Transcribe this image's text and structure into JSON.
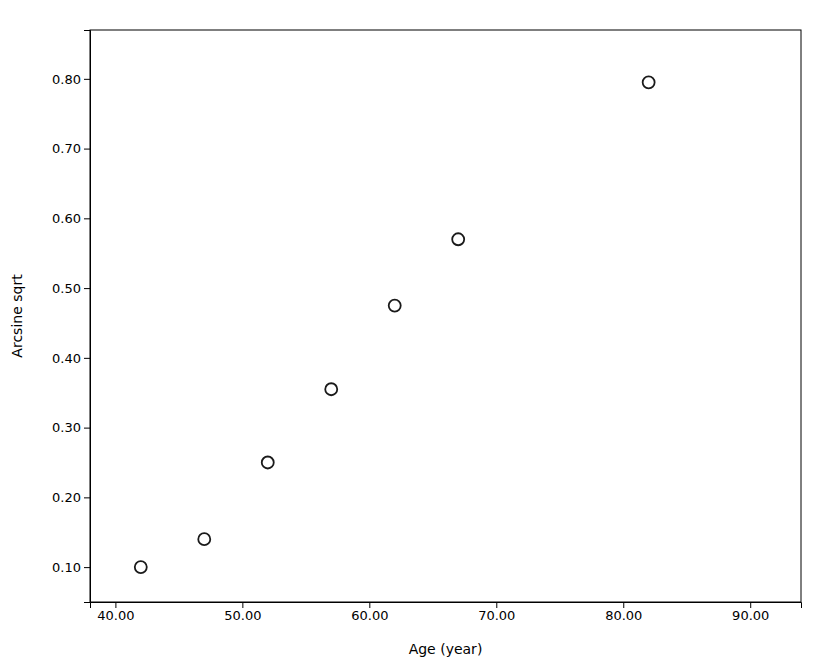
{
  "chart_data": {
    "type": "scatter",
    "x": [
      42,
      47,
      52,
      57,
      62,
      67,
      82
    ],
    "y": [
      0.1,
      0.14,
      0.25,
      0.355,
      0.475,
      0.57,
      0.795
    ],
    "xlabel": "Age (year)",
    "ylabel": "Arcsine sqrt",
    "xlim": [
      38,
      94
    ],
    "ylim": [
      0.05,
      0.87
    ],
    "xticks": [
      {
        "value": 40.0,
        "label": "40.00"
      },
      {
        "value": 50.0,
        "label": "50.00"
      },
      {
        "value": 60.0,
        "label": "60.00"
      },
      {
        "value": 70.0,
        "label": "70.00"
      },
      {
        "value": 80.0,
        "label": "80.00"
      },
      {
        "value": 90.0,
        "label": "90.00"
      }
    ],
    "yticks": [
      {
        "value": 0.1,
        "label": "0.10"
      },
      {
        "value": 0.2,
        "label": "0.20"
      },
      {
        "value": 0.3,
        "label": "0.30"
      },
      {
        "value": 0.4,
        "label": "0.40"
      },
      {
        "value": 0.5,
        "label": "0.50"
      },
      {
        "value": 0.6,
        "label": "0.60"
      },
      {
        "value": 0.7,
        "label": "0.70"
      },
      {
        "value": 0.8,
        "label": "0.80"
      }
    ],
    "marker": "open-circle",
    "color": "#1a1a1a",
    "grid": false
  }
}
